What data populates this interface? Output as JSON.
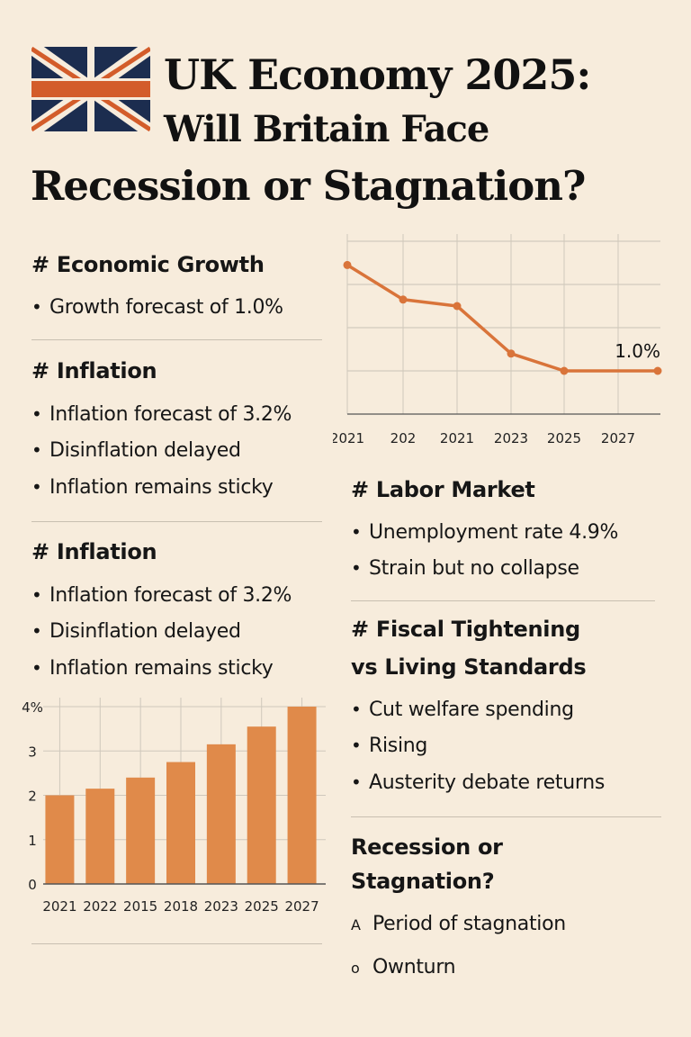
{
  "header": {
    "title_line1": "UK Economy 2025:",
    "title_line2": "Will Britain Face",
    "title_line3": "Recession or Stagnation?",
    "flag_icon": "union-jack-flag"
  },
  "left": {
    "growth": {
      "heading": "# Economic Growth",
      "bullets": [
        "Growth forecast of 1.0%"
      ]
    },
    "inflation1": {
      "heading": "# Inflation",
      "bullets": [
        "Inflation forecast of 3.2%",
        "Disinflation delayed",
        "Inflation remains sticky"
      ]
    },
    "inflation2": {
      "heading": "# Inflation",
      "bullets": [
        "Inflation forecast of 3.2%",
        "Disinflation delayed",
        "Inflation remains sticky"
      ]
    }
  },
  "right": {
    "labor": {
      "heading": "# Labor Market",
      "bullets": [
        "Unemployment rate 4.9%",
        "Strain but no collapse"
      ]
    },
    "fiscal": {
      "heading_line1": "# Fiscal Tightening",
      "heading_line2": "vs Living Standards",
      "bullets": [
        "Cut welfare spending",
        "Rising",
        "Austerity debate returns"
      ]
    },
    "outlook": {
      "heading_line1": "Recession or",
      "heading_line2": "Stagnation?",
      "items": [
        {
          "marker": "A",
          "text": "Period of stagnation"
        },
        {
          "marker": "o",
          "text": "Ownturn"
        }
      ]
    }
  },
  "bullet_glyph": "•",
  "colors": {
    "background": "#f7ecdc",
    "accent": "#e08a4a",
    "line": "#d9743a",
    "navy": "#1c2d4f",
    "flag_red": "#d35c2a"
  },
  "chart_data": [
    {
      "type": "line",
      "categories": [
        "2021",
        "202",
        "2021",
        "2023",
        "2025",
        "2027"
      ],
      "values": [
        3.45,
        2.65,
        2.5,
        1.4,
        1.0,
        1.0
      ],
      "annotation": "1.0%",
      "grid": true,
      "ylim": [
        0,
        4
      ]
    },
    {
      "type": "bar",
      "categories": [
        "2021",
        "2022",
        "2015",
        "2018",
        "2023",
        "2025",
        "2027"
      ],
      "values": [
        2.0,
        2.15,
        2.4,
        2.75,
        3.15,
        3.55,
        4.0
      ],
      "ytick_labels": [
        "0",
        "1",
        "2",
        "3",
        "4%"
      ],
      "yticks": [
        0,
        1,
        2,
        3,
        4
      ],
      "ylim": [
        0,
        4
      ],
      "grid": true
    }
  ]
}
